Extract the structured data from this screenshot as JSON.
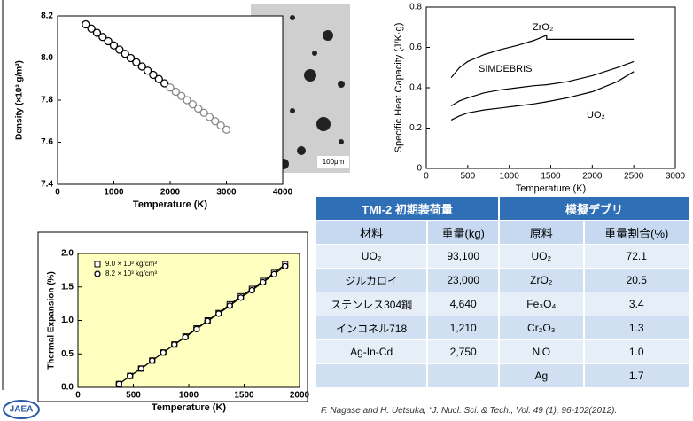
{
  "chart_data": [
    {
      "type": "scatter",
      "xlabel": "Temperature (K)",
      "ylabel": "Density  (×10³ g/m³)",
      "xlim": [
        0,
        4000
      ],
      "xticks": [
        0,
        1000,
        2000,
        3000,
        4000
      ],
      "ylim": [
        7.4,
        8.2
      ],
      "yticks": [
        7.4,
        7.6,
        7.8,
        {
          "value": 8,
          "label": "8.0"
        },
        8.2
      ],
      "series": [
        {
          "marker": "circle",
          "color": "#000000",
          "x": [
            500,
            600,
            700,
            800,
            900,
            1000,
            1100,
            1200,
            1300,
            1400,
            1500,
            1600,
            1700,
            1800,
            1900
          ],
          "values": [
            8.16,
            8.14,
            8.12,
            8.1,
            8.08,
            8.06,
            8.04,
            8.02,
            8.0,
            7.98,
            7.96,
            7.94,
            7.92,
            7.9,
            7.88
          ]
        },
        {
          "marker": "circle",
          "color": "#888888",
          "x": [
            2000,
            2100,
            2200,
            2300,
            2400,
            2500,
            2600,
            2700,
            2800,
            2900,
            3000
          ],
          "values": [
            7.86,
            7.84,
            7.82,
            7.8,
            7.78,
            7.76,
            7.74,
            7.72,
            7.7,
            7.68,
            7.66
          ]
        }
      ]
    },
    {
      "type": "line",
      "xlabel": "Temperature (K)",
      "ylabel": "Specific Heat Capacity (J/K·g)",
      "xlim": [
        0,
        3000
      ],
      "xticks": [
        0,
        500,
        1000,
        1500,
        2000,
        2500,
        3000
      ],
      "ylim": [
        0,
        0.8
      ],
      "yticks": [
        0,
        0.2,
        0.4,
        0.6,
        0.8
      ],
      "x": [
        300,
        400,
        500,
        700,
        900,
        1100,
        1300,
        1450,
        1450,
        1700,
        2000,
        2300,
        2500
      ],
      "series": [
        {
          "name": "ZrO₂",
          "color": "#000000",
          "values": [
            0.45,
            0.5,
            0.53,
            0.565,
            0.59,
            0.61,
            0.635,
            0.66,
            0.64,
            0.64,
            0.64,
            0.64,
            0.64
          ]
        },
        {
          "name": "SIMDEBRIS",
          "color": "#000000",
          "values": [
            0.31,
            0.335,
            0.35,
            0.375,
            0.39,
            0.4,
            0.41,
            0.415,
            0.415,
            0.43,
            0.46,
            0.5,
            0.53
          ]
        },
        {
          "name": "UO₂",
          "color": "#000000",
          "values": [
            0.24,
            0.26,
            0.275,
            0.29,
            0.3,
            0.31,
            0.32,
            0.33,
            0.33,
            0.35,
            0.38,
            0.43,
            0.48
          ]
        }
      ]
    },
    {
      "type": "line",
      "xlabel": "Temperature (K)",
      "ylabel": "Thermal Expansion (%)",
      "plot_background": "#ffffc0",
      "legend": "upper left",
      "xlim": [
        0,
        2000
      ],
      "xticks": [
        0,
        500,
        1000,
        1500,
        2000
      ],
      "ylim": [
        0,
        2.0
      ],
      "yticks": [
        {
          "value": 0,
          "label": "0.0"
        },
        0.5,
        {
          "value": 1,
          "label": "1.0"
        },
        1.5,
        {
          "value": 2,
          "label": "2.0"
        }
      ],
      "x": [
        370,
        470,
        570,
        670,
        770,
        870,
        970,
        1070,
        1170,
        1270,
        1370,
        1470,
        1570,
        1670,
        1770,
        1870
      ],
      "series": [
        {
          "name": "9.0 × 10³ kg/cm³",
          "marker": "square",
          "color": "#000000",
          "values": [
            0.05,
            0.17,
            0.28,
            0.4,
            0.52,
            0.64,
            0.76,
            0.88,
            1.0,
            1.11,
            1.24,
            1.36,
            1.47,
            1.59,
            1.71,
            1.84
          ]
        },
        {
          "name": "8.2 × 10³ kg/cm³",
          "marker": "circle",
          "color": "#000000",
          "values": [
            0.05,
            0.17,
            0.28,
            0.4,
            0.52,
            0.64,
            0.75,
            0.87,
            0.99,
            1.1,
            1.22,
            1.34,
            1.45,
            1.57,
            1.69,
            1.81
          ]
        }
      ]
    }
  ],
  "image": {
    "scale_label": "100μm"
  },
  "table": {
    "groups": [
      "TMI-2  初期装荷量",
      "模擬デブリ"
    ],
    "columns": [
      "材料",
      "重量(kg)",
      "原料",
      "重量割合(%)"
    ],
    "left_rows": [
      [
        "UO₂",
        "93,100"
      ],
      [
        "ジルカロイ",
        "23,000"
      ],
      [
        "ステンレス304鋼",
        "4,640"
      ],
      [
        "インコネル718",
        "1,210"
      ],
      [
        "Ag-In-Cd",
        "2,750"
      ]
    ],
    "right_rows": [
      [
        "UO₂",
        "72.1"
      ],
      [
        "ZrO₂",
        "20.5"
      ],
      [
        "Fe₃O₄",
        "3.4"
      ],
      [
        "Cr₂O₃",
        "1.3"
      ],
      [
        "NiO",
        "1.0"
      ],
      [
        "Ag",
        "1.7"
      ]
    ]
  },
  "citation": "F. Nagase and H. Uetsuka, “J. Nucl. Sci. & Tech., Vol. 49 (1), 96-102(2012).",
  "logo": "JAEA"
}
